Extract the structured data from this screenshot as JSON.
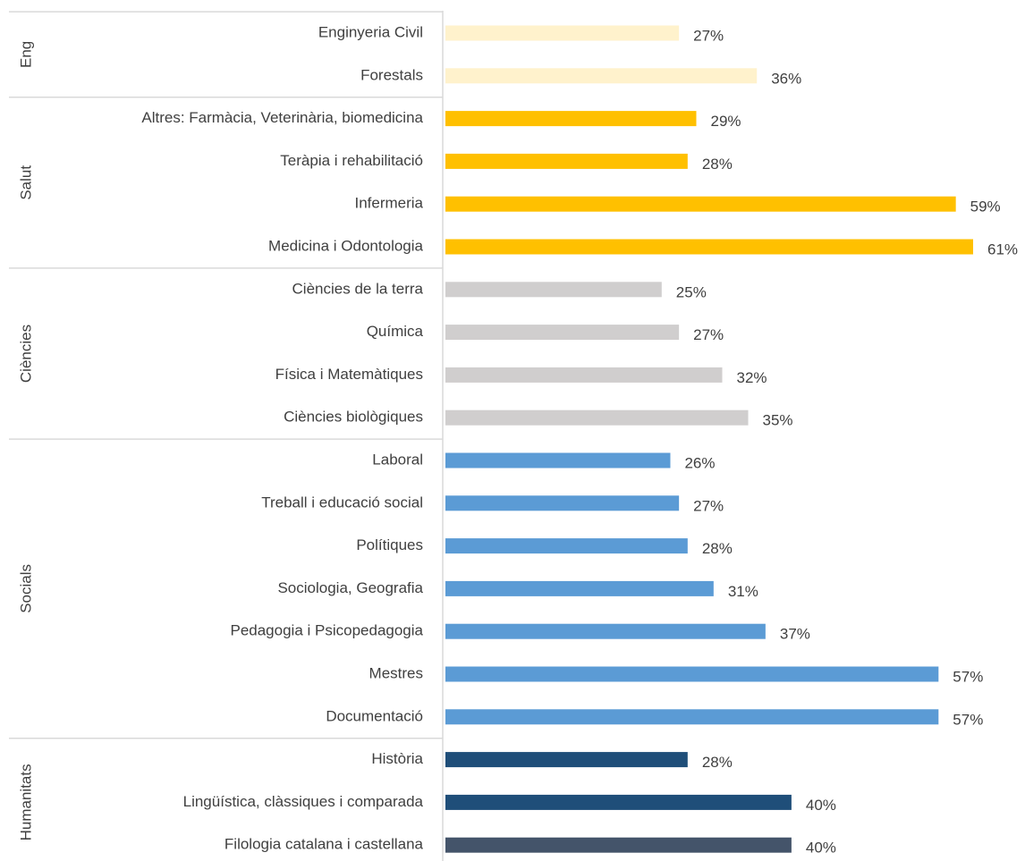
{
  "chart_data": {
    "type": "bar",
    "groups": [
      {
        "name": "Eng",
        "categories": [
          "Enginyeria Civil",
          "Forestals"
        ],
        "values": [
          27,
          36
        ],
        "value_labels": [
          "27%",
          "36%"
        ],
        "colors": [
          "#fff2cc",
          "#fff2cc"
        ]
      },
      {
        "name": "Salut",
        "categories": [
          "Altres: Farmàcia, Veterinària, biomedicina",
          "Teràpia i rehabilitació",
          "Infermeria",
          "Medicina i Odontologia"
        ],
        "values": [
          29,
          28,
          59,
          61
        ],
        "value_labels": [
          "29%",
          "28%",
          "59%",
          "61%"
        ],
        "colors": [
          "#ffc000",
          "#ffc000",
          "#ffc000",
          "#ffc000"
        ]
      },
      {
        "name": "Ciències",
        "categories": [
          "Ciències de la terra",
          "Química",
          "Física i Matemàtiques",
          "Ciències biològiques"
        ],
        "values": [
          25,
          27,
          32,
          35
        ],
        "value_labels": [
          "25%",
          "27%",
          "32%",
          "35%"
        ],
        "colors": [
          "#d0cece",
          "#d0cece",
          "#d0cece",
          "#d0cece"
        ]
      },
      {
        "name": "Socials",
        "categories": [
          "Laboral",
          "Treball i educació social",
          "Polítiques",
          "Sociologia, Geografia",
          "Pedagogia i Psicopedagogia",
          "Mestres",
          "Documentació"
        ],
        "values": [
          26,
          27,
          28,
          31,
          37,
          57,
          57
        ],
        "value_labels": [
          "26%",
          "27%",
          "28%",
          "31%",
          "37%",
          "57%",
          "57%"
        ],
        "colors": [
          "#5b9bd5",
          "#5b9bd5",
          "#5b9bd5",
          "#5b9bd5",
          "#5b9bd5",
          "#5b9bd5",
          "#5b9bd5"
        ]
      },
      {
        "name": "Humanitats",
        "categories": [
          "Història",
          "Lingüística, clàssiques i comparada",
          "Filologia catalana i castellana"
        ],
        "values": [
          28,
          40,
          40
        ],
        "value_labels": [
          "28%",
          "40%",
          "40%"
        ],
        "colors": [
          "#1f4e79",
          "#1f4e79",
          "#44546a"
        ]
      }
    ]
  }
}
